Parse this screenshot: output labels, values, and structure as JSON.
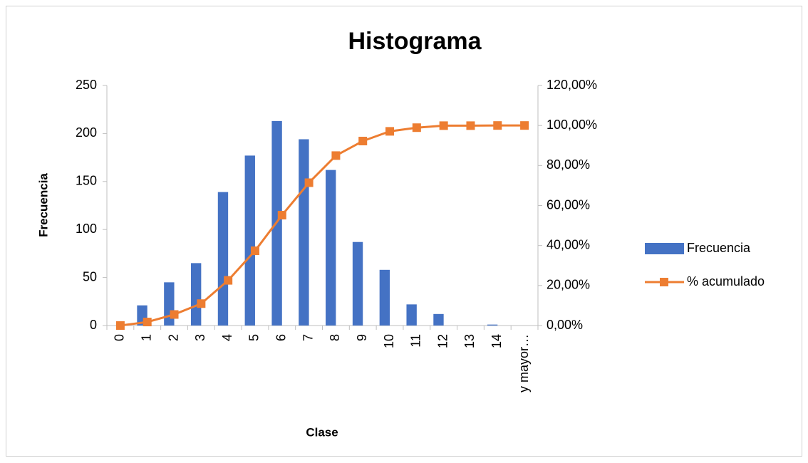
{
  "chart_data": {
    "type": "bar",
    "title": "Histograma",
    "x_label": "Clase",
    "y_label": "Frecuencia",
    "categories": [
      "0",
      "1",
      "2",
      "3",
      "4",
      "5",
      "6",
      "7",
      "8",
      "9",
      "10",
      "11",
      "12",
      "13",
      "14",
      "y mayor…"
    ],
    "series": [
      {
        "name": "Frecuencia",
        "type": "bar",
        "color": "#4472c4",
        "values": [
          0,
          21,
          45,
          65,
          139,
          177,
          213,
          194,
          162,
          87,
          58,
          22,
          12,
          0,
          1,
          0
        ]
      },
      {
        "name": "% acumulado",
        "type": "line",
        "axis": "y2",
        "color": "#ed7d31",
        "values": [
          0,
          1.76,
          5.52,
          10.95,
          22.58,
          37.37,
          55.18,
          71.4,
          84.95,
          92.22,
          97.07,
          98.91,
          99.92,
          99.92,
          100,
          100
        ]
      }
    ],
    "ylim": [
      0,
      250
    ],
    "yticks": [
      0,
      50,
      100,
      150,
      200,
      250
    ],
    "y2lim": [
      0,
      120
    ],
    "y2ticks": [
      {
        "value": 0,
        "label": "0,00%"
      },
      {
        "value": 20,
        "label": "20,00%"
      },
      {
        "value": 40,
        "label": "40,00%"
      },
      {
        "value": 60,
        "label": "60,00%"
      },
      {
        "value": 80,
        "label": "80,00%"
      },
      {
        "value": 100,
        "label": "100,00%"
      },
      {
        "value": 120,
        "label": "120,00%"
      }
    ],
    "grid": false,
    "legend": "right"
  }
}
